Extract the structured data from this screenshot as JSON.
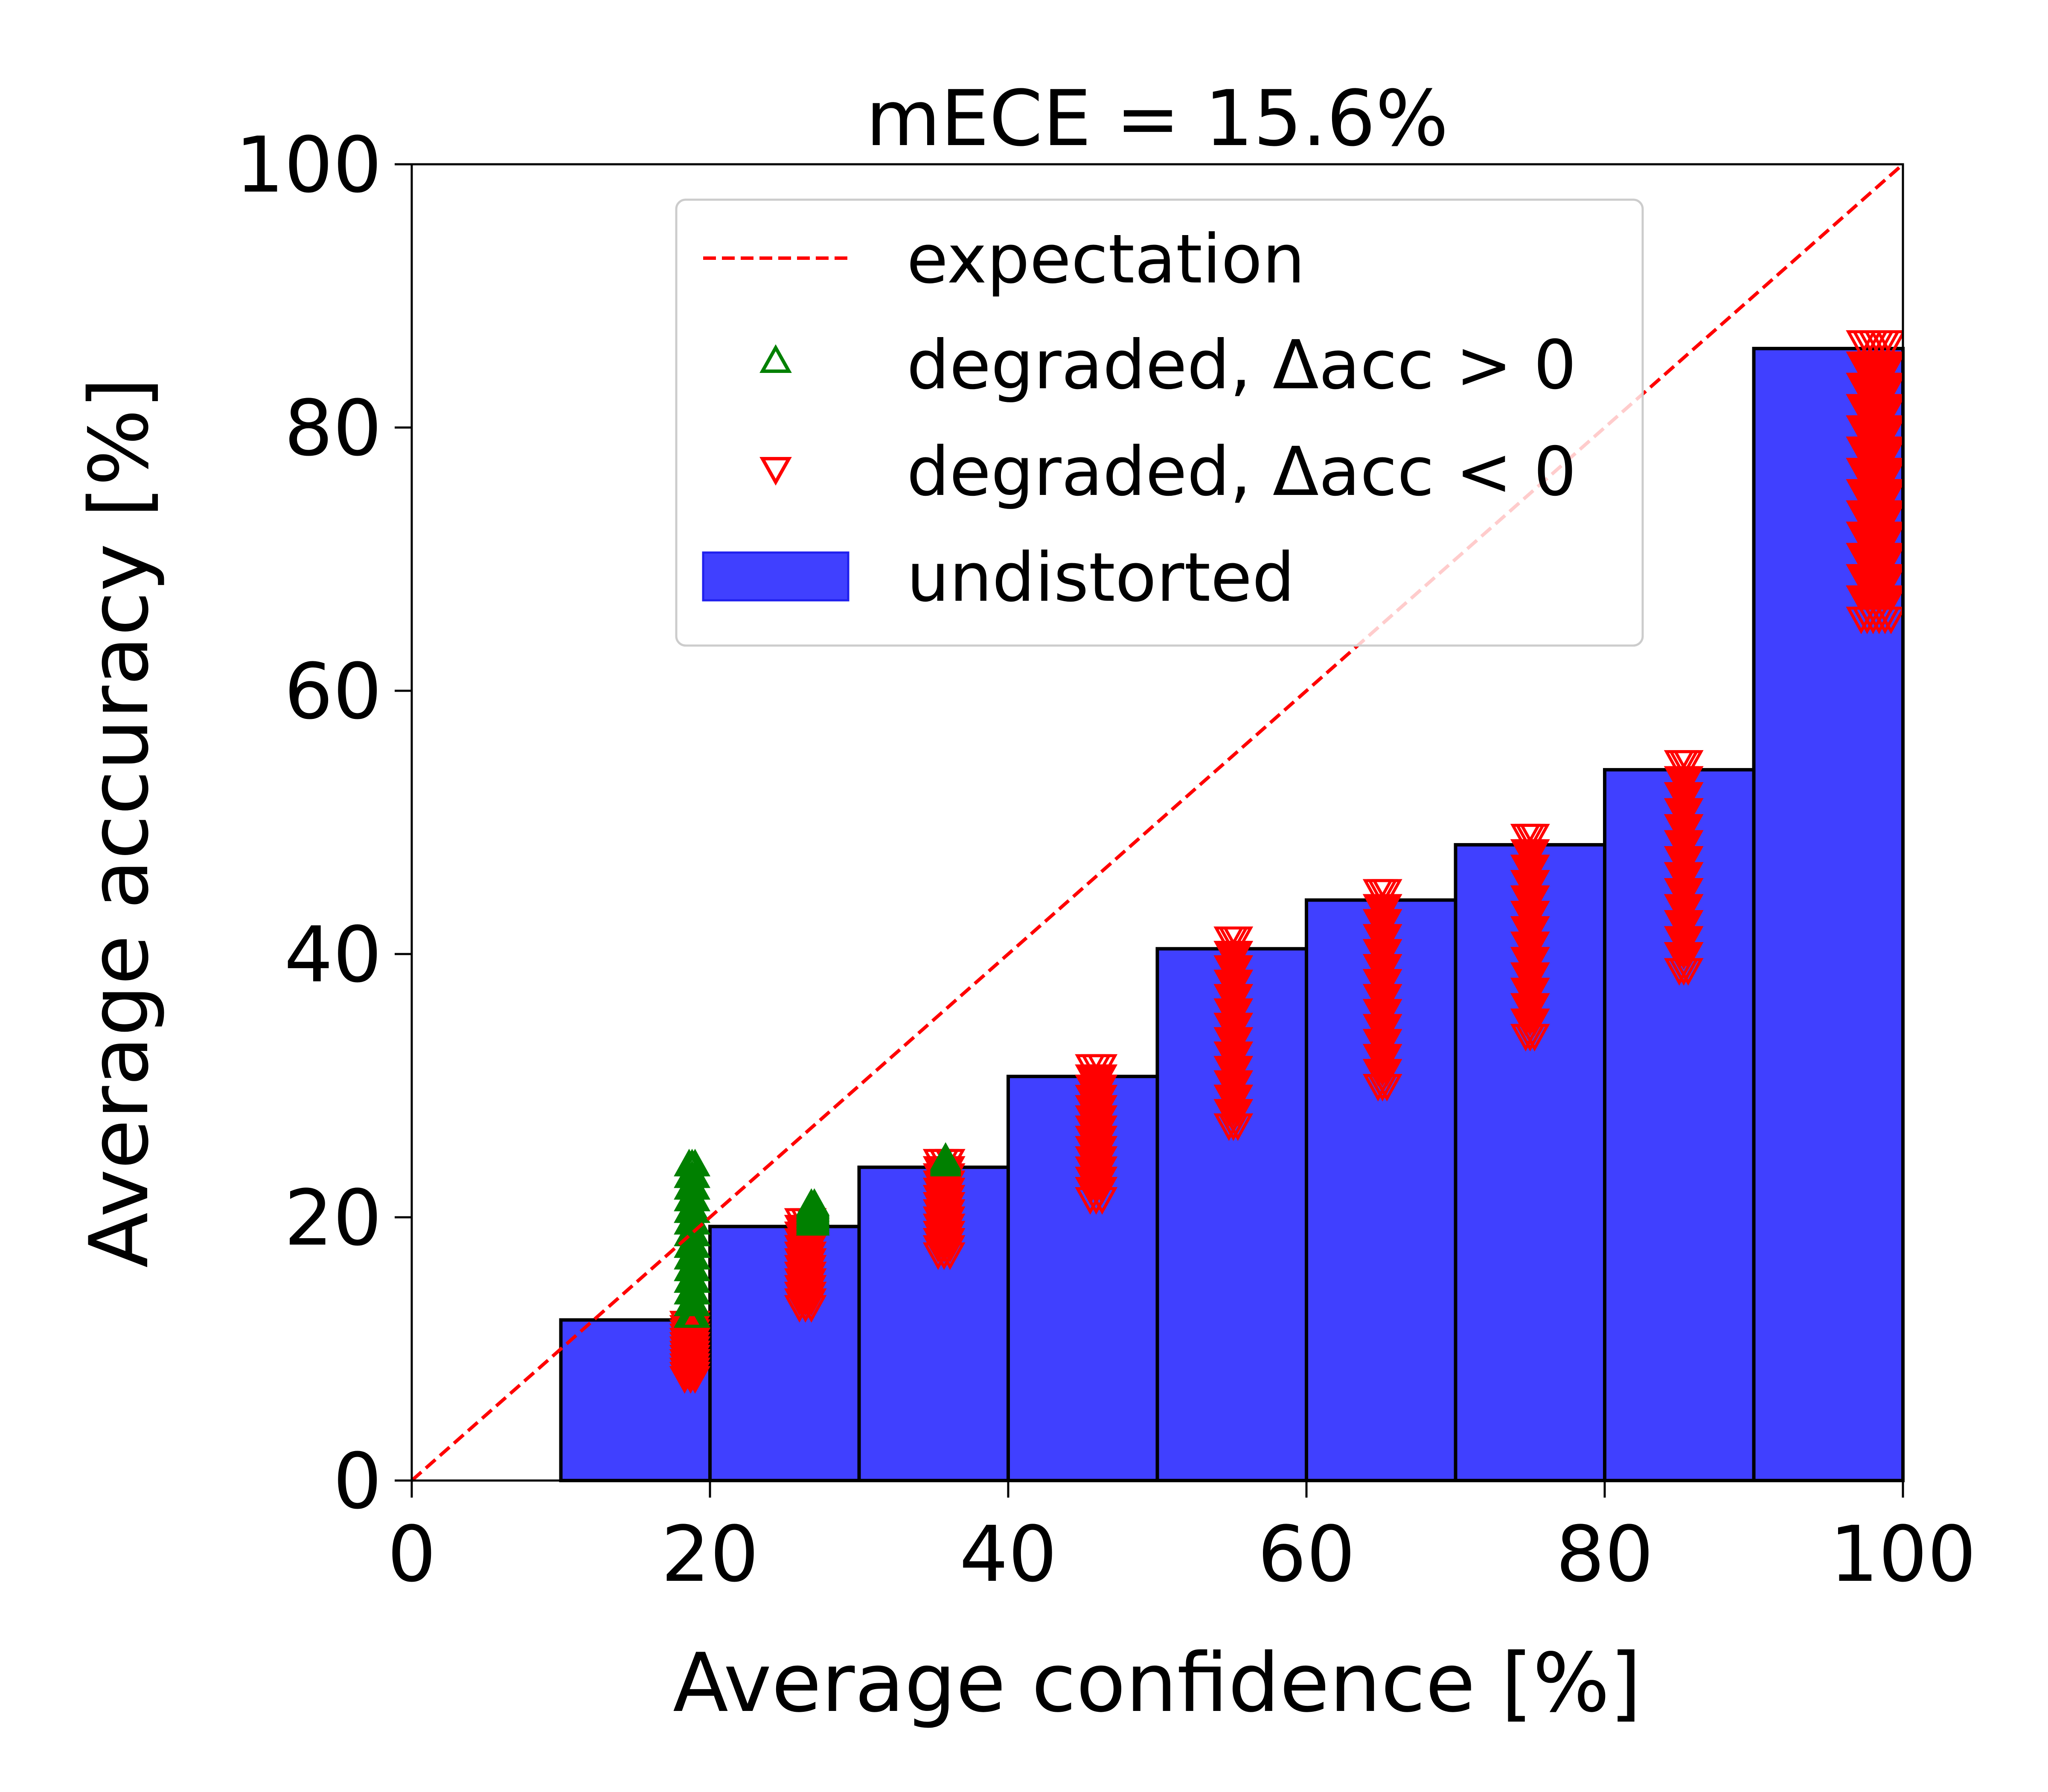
{
  "chart_data": {
    "type": "bar",
    "title": "mECE = 15.6%",
    "xlabel": "Average confidence [%]",
    "ylabel": "Average accuracy [%]",
    "xlim": [
      0,
      100
    ],
    "ylim": [
      0,
      100
    ],
    "xticks": [
      "0",
      "20",
      "40",
      "60",
      "80",
      "100"
    ],
    "yticks": [
      "0",
      "20",
      "40",
      "60",
      "80",
      "100"
    ],
    "grid": false,
    "legend_position": "top-center",
    "legend": {
      "expectation": "expectation",
      "up": "degraded, Δacc > 0",
      "down": "degraded, Δacc < 0",
      "bars": "undistorted"
    },
    "colors": {
      "bar_fill": "#4040ff",
      "bar_edge": "#000000",
      "expectation": "#ff0000",
      "up": "#008000",
      "down": "#ff0000"
    },
    "series": [
      {
        "name": "undistorted",
        "kind": "bar",
        "bins": [
          [
            10,
            20
          ],
          [
            20,
            30
          ],
          [
            30,
            40
          ],
          [
            40,
            50
          ],
          [
            50,
            60
          ],
          [
            60,
            70
          ],
          [
            70,
            80
          ],
          [
            80,
            90
          ],
          [
            90,
            100
          ]
        ],
        "values": [
          12.2,
          19.3,
          23.8,
          30.7,
          40.4,
          44.1,
          48.3,
          54.0,
          86.0
        ]
      },
      {
        "name": "expectation",
        "kind": "line",
        "x": [
          0,
          100
        ],
        "y": [
          0,
          100
        ]
      },
      {
        "name": "degraded, Δacc > 0",
        "kind": "scatter",
        "marker": "triangle-up",
        "groups": [
          {
            "x": [
              18.6,
              18.8,
              19.0
            ],
            "ymin": 12.5,
            "ymax": 24.0
          },
          {
            "x": [
              26.8,
              27.0
            ],
            "ymin": 19.5,
            "ymax": 21.0
          },
          {
            "x": [
              35.8
            ],
            "ymin": 24.0,
            "ymax": 24.5
          }
        ]
      },
      {
        "name": "degraded, Δacc < 0",
        "kind": "scatter",
        "marker": "triangle-down",
        "groups": [
          {
            "x": [
              18.3,
              18.7,
              19.0
            ],
            "ymin": 7.8,
            "ymax": 12.0
          },
          {
            "x": [
              26.0,
              26.4,
              26.8
            ],
            "ymin": 13.2,
            "ymax": 19.8
          },
          {
            "x": [
              35.3,
              35.7,
              36.1
            ],
            "ymin": 17.2,
            "ymax": 24.3
          },
          {
            "x": [
              45.5,
              45.9,
              46.3
            ],
            "ymin": 21.4,
            "ymax": 31.5
          },
          {
            "x": [
              54.8,
              55.1,
              55.4
            ],
            "ymin": 27.0,
            "ymax": 41.2
          },
          {
            "x": [
              64.8,
              65.1,
              65.4
            ],
            "ymin": 30.0,
            "ymax": 44.8
          },
          {
            "x": [
              74.7,
              75.0,
              75.3
            ],
            "ymin": 33.8,
            "ymax": 49.0
          },
          {
            "x": [
              85.0,
              85.3,
              85.6
            ],
            "ymin": 38.8,
            "ymax": 54.6
          },
          {
            "x": [
              97.2,
              97.6,
              98.0,
              98.4,
              98.8,
              99.2
            ],
            "ymin": 65.5,
            "ymax": 86.5
          }
        ]
      }
    ]
  }
}
